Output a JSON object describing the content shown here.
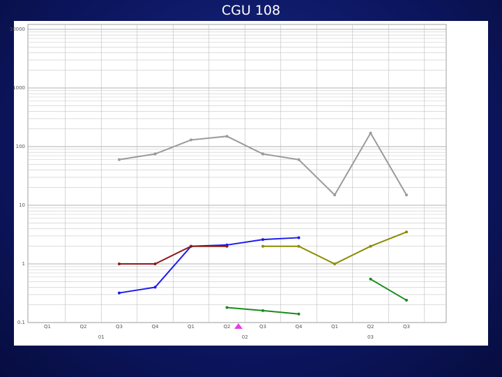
{
  "chart_data": {
    "type": "line",
    "title": "CGU 108",
    "categories": [
      "Q1",
      "Q2",
      "Q3",
      "Q4",
      "Q1",
      "Q2",
      "Q3",
      "Q4",
      "Q1",
      "Q2",
      "Q3"
    ],
    "x_groups": [
      {
        "label": "01",
        "span": 4
      },
      {
        "label": "02",
        "span": 4
      },
      {
        "label": "03",
        "span": 3
      }
    ],
    "log_scale": true,
    "grid": true,
    "ylim": [
      0.1,
      10000
    ],
    "yticks": [
      0.1,
      1,
      10,
      100,
      1000,
      10000
    ],
    "series": [
      {
        "name": "grey",
        "color": "#9a9a9a",
        "values": [
          null,
          null,
          60,
          75,
          130,
          150,
          75,
          60,
          15,
          170,
          15
        ]
      },
      {
        "name": "blue",
        "color": "#1a1aee",
        "values": [
          null,
          null,
          0.32,
          0.4,
          2.0,
          2.1,
          2.6,
          2.8,
          null,
          null,
          null
        ]
      },
      {
        "name": "red",
        "color": "#8b1a1a",
        "values": [
          null,
          null,
          1.0,
          1.0,
          2.0,
          2.0,
          null,
          null,
          null,
          null,
          null
        ]
      },
      {
        "name": "olive",
        "color": "#8b8b00",
        "values": [
          null,
          null,
          null,
          null,
          null,
          null,
          2.0,
          2.0,
          1.0,
          2.0,
          3.5
        ]
      },
      {
        "name": "green",
        "color": "#1a8b1a",
        "values": [
          null,
          null,
          null,
          null,
          null,
          0.18,
          0.16,
          0.14,
          null,
          0.55,
          0.24
        ]
      }
    ]
  }
}
